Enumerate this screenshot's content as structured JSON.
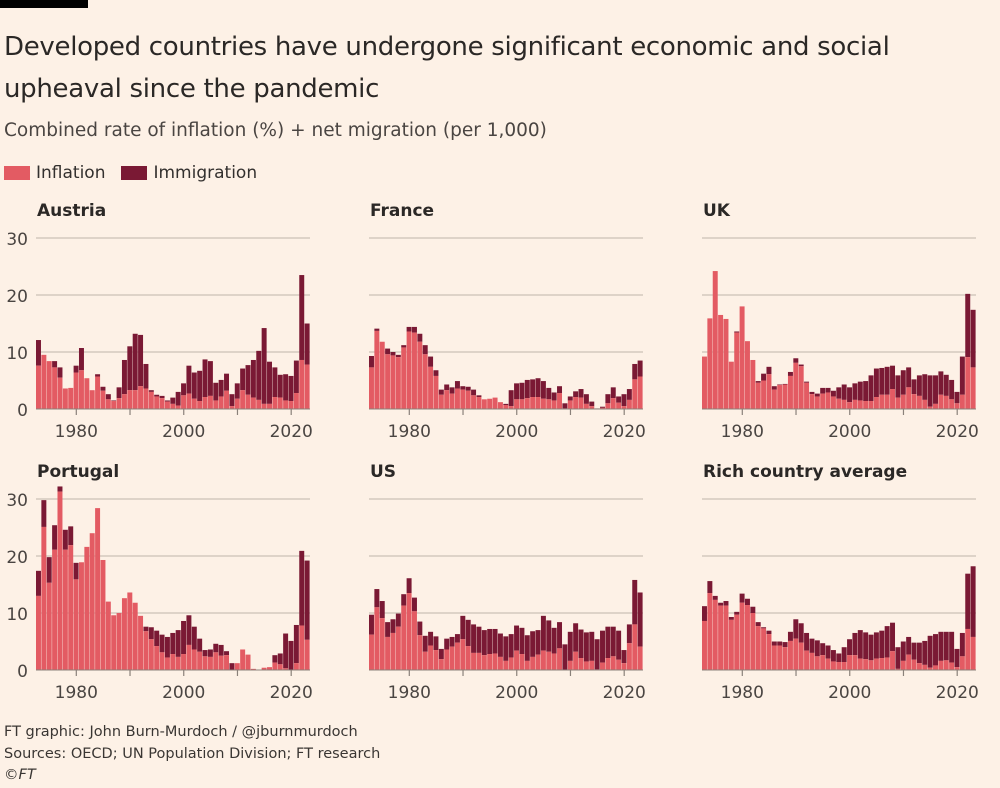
{
  "title": "Developed countries have undergone significant economic and social upheaval since the pandemic",
  "subtitle": "Combined rate of inflation (%) + net migration (per 1,000)",
  "legend": [
    {
      "label": "Inflation",
      "color": "#e35b63"
    },
    {
      "label": "Immigration",
      "color": "#7a1934"
    }
  ],
  "footer": {
    "credit": "FT graphic: John Burn-Murdoch / @jburnmurdoch",
    "sources": "Sources: OECD; UN Population Division; FT research",
    "copyright": "©FT"
  },
  "chart_data": {
    "type": "bar",
    "stacked": true,
    "years": [
      1973,
      2023
    ],
    "ylim": [
      0,
      30
    ],
    "yticks": [
      0,
      10,
      20,
      30
    ],
    "xtick_labels": [
      1980,
      2000,
      2020
    ],
    "xtick_marks": [
      1980,
      1990,
      2000,
      2010,
      2020
    ],
    "grid": true,
    "legend_placement": "top-left",
    "panels": [
      {
        "name": "Austria",
        "inflation": [
          7.6,
          9.5,
          8.4,
          7.3,
          5.5,
          3.6,
          3.7,
          6.4,
          6.8,
          5.4,
          3.3,
          5.7,
          3.2,
          1.7,
          1.4,
          1.9,
          2.6,
          3.3,
          3.3,
          4.0,
          3.6,
          3.0,
          2.2,
          1.9,
          1.3,
          0.9,
          0.6,
          2.4,
          2.7,
          1.8,
          1.4,
          2.1,
          2.3,
          1.5,
          2.2,
          3.2,
          0.5,
          1.8,
          3.3,
          2.5,
          2.0,
          1.6,
          0.9,
          0.9,
          2.1,
          2.0,
          1.5,
          1.4,
          2.8,
          8.6,
          7.8
        ],
        "combined": [
          12.1,
          9.5,
          8.4,
          8.4,
          7.3,
          3.6,
          3.7,
          7.6,
          10.7,
          5.4,
          3.3,
          6.1,
          3.9,
          2.6,
          1.5,
          3.8,
          8.6,
          11.0,
          13.2,
          13.0,
          7.9,
          3.3,
          2.5,
          2.3,
          1.5,
          2.0,
          3.0,
          4.5,
          7.6,
          6.4,
          6.7,
          8.7,
          8.4,
          4.6,
          5.1,
          6.2,
          2.6,
          4.5,
          7.1,
          7.7,
          8.6,
          10.2,
          14.2,
          8.3,
          7.3,
          6.0,
          6.1,
          5.8,
          8.5,
          23.5,
          15.0
        ]
      },
      {
        "name": "France",
        "inflation": [
          7.3,
          13.7,
          11.8,
          9.6,
          9.4,
          9.1,
          10.8,
          13.6,
          13.4,
          11.8,
          9.6,
          7.4,
          5.8,
          2.5,
          3.3,
          2.7,
          3.6,
          3.4,
          3.2,
          2.4,
          2.1,
          1.7,
          1.8,
          2.0,
          1.2,
          0.7,
          0.5,
          1.7,
          1.7,
          1.9,
          2.1,
          2.1,
          1.8,
          1.7,
          1.5,
          2.8,
          0.1,
          1.5,
          2.1,
          2.0,
          0.9,
          0.5,
          0.0,
          0.2,
          1.0,
          1.9,
          1.1,
          0.5,
          1.6,
          5.2,
          5.7
        ],
        "combined": [
          9.3,
          14.1,
          11.8,
          10.6,
          10.0,
          9.5,
          11.2,
          14.4,
          14.4,
          13.2,
          11.2,
          9.2,
          6.8,
          3.4,
          4.3,
          3.8,
          4.9,
          4.0,
          3.9,
          3.4,
          2.4,
          1.7,
          1.8,
          2.0,
          1.2,
          0.9,
          3.3,
          4.5,
          4.6,
          5.1,
          5.2,
          5.4,
          4.9,
          3.7,
          2.9,
          4.0,
          1.0,
          2.2,
          3.1,
          3.5,
          2.6,
          1.3,
          0.1,
          0.4,
          2.6,
          3.8,
          2.2,
          2.6,
          3.5,
          7.9,
          8.5
        ]
      },
      {
        "name": "UK",
        "inflation": [
          9.2,
          15.9,
          24.2,
          16.5,
          15.8,
          8.3,
          13.4,
          18.0,
          11.9,
          8.6,
          4.6,
          5.0,
          6.1,
          3.4,
          4.2,
          4.3,
          5.8,
          8.1,
          7.5,
          4.6,
          2.6,
          2.2,
          2.7,
          2.9,
          2.2,
          1.8,
          1.6,
          1.2,
          1.6,
          1.5,
          1.4,
          1.4,
          2.1,
          2.5,
          2.5,
          3.5,
          2.0,
          2.5,
          3.8,
          2.6,
          2.3,
          1.6,
          0.4,
          0.9,
          2.5,
          2.3,
          1.7,
          1.0,
          2.5,
          9.1,
          7.3
        ],
        "combined": [
          9.2,
          15.9,
          24.2,
          16.5,
          15.8,
          8.3,
          13.6,
          18.0,
          11.9,
          8.6,
          4.9,
          6.2,
          7.4,
          4.0,
          4.3,
          4.4,
          6.5,
          8.9,
          7.8,
          4.8,
          3.0,
          2.7,
          3.7,
          3.7,
          3.2,
          3.8,
          4.3,
          3.8,
          4.5,
          4.8,
          4.9,
          5.9,
          7.1,
          7.2,
          7.4,
          7.6,
          5.9,
          6.8,
          7.3,
          5.2,
          5.9,
          6.1,
          5.9,
          5.9,
          6.6,
          6.0,
          5.1,
          3.0,
          9.2,
          20.2,
          17.4
        ]
      },
      {
        "name": "Portugal",
        "inflation": [
          13.0,
          25.1,
          15.3,
          21.1,
          31.3,
          21.1,
          21.9,
          15.9,
          18.9,
          21.6,
          24.0,
          28.4,
          19.3,
          12.0,
          9.6,
          10.0,
          12.6,
          13.6,
          11.8,
          9.5,
          6.8,
          5.4,
          4.2,
          3.1,
          2.2,
          2.8,
          2.3,
          2.8,
          4.4,
          3.6,
          3.2,
          2.4,
          2.3,
          3.1,
          2.5,
          2.6,
          0.0,
          1.2,
          3.6,
          2.7,
          0.2,
          0.0,
          0.4,
          0.5,
          1.3,
          1.0,
          0.3,
          0.0,
          1.2,
          7.8,
          5.3
        ],
        "combined": [
          17.4,
          29.8,
          19.8,
          25.4,
          32.2,
          24.6,
          25.2,
          18.8,
          18.9,
          21.6,
          24.0,
          28.4,
          19.3,
          12.0,
          9.6,
          10.0,
          12.6,
          13.6,
          11.8,
          9.5,
          7.6,
          7.5,
          6.9,
          6.2,
          5.8,
          6.5,
          7.0,
          8.6,
          9.6,
          7.6,
          5.5,
          3.5,
          3.6,
          4.6,
          4.4,
          3.3,
          1.2,
          1.2,
          3.6,
          2.7,
          0.2,
          0.0,
          0.4,
          0.5,
          2.6,
          2.9,
          6.4,
          5.1,
          7.9,
          20.9,
          19.2
        ]
      },
      {
        "name": "US",
        "inflation": [
          6.2,
          11.0,
          9.1,
          5.8,
          6.5,
          7.6,
          11.3,
          13.5,
          10.3,
          6.1,
          3.2,
          4.3,
          3.5,
          1.9,
          3.6,
          4.1,
          4.8,
          5.4,
          4.2,
          3.0,
          3.0,
          2.6,
          2.8,
          2.9,
          2.3,
          1.6,
          2.2,
          3.4,
          2.8,
          1.6,
          2.3,
          2.7,
          3.4,
          3.2,
          2.9,
          3.8,
          0.0,
          1.6,
          3.2,
          2.1,
          1.5,
          1.6,
          0.1,
          1.3,
          2.1,
          2.4,
          1.8,
          1.2,
          4.7,
          8.0,
          4.1
        ],
        "combined": [
          9.7,
          14.2,
          12.1,
          8.4,
          8.9,
          9.9,
          13.3,
          16.1,
          12.7,
          8.5,
          6.0,
          6.7,
          5.9,
          3.7,
          5.5,
          5.8,
          6.3,
          9.5,
          8.8,
          8.0,
          7.6,
          7.0,
          7.2,
          7.2,
          6.4,
          5.9,
          6.3,
          7.8,
          7.4,
          6.1,
          6.8,
          7.0,
          9.5,
          8.7,
          7.4,
          8.4,
          4.5,
          6.7,
          8.2,
          7.1,
          6.6,
          6.7,
          5.4,
          6.9,
          7.6,
          7.6,
          6.9,
          3.5,
          8.0,
          15.8,
          13.6
        ]
      },
      {
        "name": "Rich country average",
        "inflation": [
          8.6,
          13.5,
          12.3,
          11.3,
          11.3,
          8.8,
          9.7,
          11.8,
          11.4,
          10.0,
          7.7,
          7.3,
          6.3,
          4.3,
          4.3,
          4.0,
          5.1,
          5.5,
          4.8,
          3.4,
          3.0,
          2.4,
          2.6,
          2.0,
          1.5,
          1.4,
          1.4,
          2.6,
          2.6,
          2.0,
          1.9,
          1.7,
          2.0,
          2.1,
          2.2,
          3.3,
          0.2,
          1.6,
          2.7,
          1.8,
          1.2,
          0.9,
          0.4,
          0.8,
          1.6,
          1.7,
          1.3,
          0.5,
          2.4,
          7.2,
          5.8
        ],
        "combined": [
          11.2,
          15.6,
          13.0,
          11.8,
          12.1,
          9.3,
          10.2,
          13.4,
          12.5,
          11.1,
          8.4,
          7.5,
          6.9,
          5.0,
          5.0,
          4.9,
          6.7,
          8.9,
          8.2,
          6.5,
          5.5,
          5.2,
          4.7,
          4.3,
          3.5,
          2.9,
          4.0,
          5.4,
          6.5,
          7.0,
          6.6,
          6.2,
          6.6,
          6.9,
          7.7,
          8.3,
          4.0,
          5.0,
          5.8,
          4.8,
          4.8,
          5.1,
          6.0,
          6.3,
          6.7,
          6.7,
          6.7,
          3.7,
          6.5,
          16.9,
          18.2
        ]
      }
    ]
  }
}
